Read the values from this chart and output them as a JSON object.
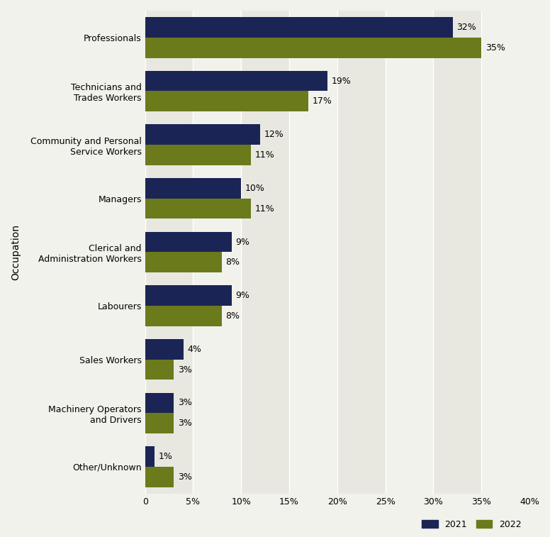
{
  "categories": [
    "Professionals",
    "Technicians and\nTrades Workers",
    "Community and Personal\nService Workers",
    "Managers",
    "Clerical and\nAdministration Workers",
    "Labourers",
    "Sales Workers",
    "Machinery Operators\nand Drivers",
    "Other/Unknown"
  ],
  "values_2021": [
    32,
    19,
    12,
    10,
    9,
    9,
    4,
    3,
    1
  ],
  "values_2022": [
    35,
    17,
    11,
    11,
    8,
    8,
    3,
    3,
    3
  ],
  "color_2021": "#1a2556",
  "color_2022": "#6b7a1a",
  "bar_height": 0.38,
  "ylabel": "Occupation",
  "xlim": [
    0,
    40
  ],
  "xticks": [
    0,
    5,
    10,
    15,
    20,
    25,
    30,
    35,
    40
  ],
  "xtick_labels": [
    "0",
    "5%",
    "10%",
    "15%",
    "20%",
    "25%",
    "30%",
    "35%",
    "40%"
  ],
  "legend_labels": [
    "2021",
    "2022"
  ],
  "background_color": "#f2f2ec",
  "stripe_light": "#e8e8e0",
  "stripe_dark": "#f2f2ec",
  "label_fontsize": 9,
  "tick_fontsize": 9,
  "ylabel_fontsize": 10
}
